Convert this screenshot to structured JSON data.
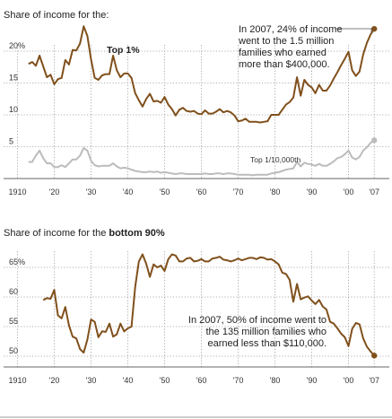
{
  "colors": {
    "primary": "#80501c",
    "secondary": "#bcbcbc"
  },
  "chart_data": [
    {
      "type": "line",
      "title_prefix": "Share of income for the:",
      "x_ticks": [
        "1910",
        "'20",
        "'30",
        "'40",
        "'50",
        "'60",
        "'70",
        "'80",
        "'90",
        "'00",
        "'07"
      ],
      "y_ticks": [
        "20%",
        "15",
        "10",
        "5"
      ],
      "ylim": [
        0,
        25
      ],
      "xlim": [
        1910,
        2008
      ],
      "annotation": [
        "In 2007, 24% of income",
        "went to the 1.5 million",
        "families who earned",
        "more than $400,000."
      ],
      "series": [
        {
          "name": "Top 1%",
          "x": [
            1913,
            1914,
            1915,
            1916,
            1917,
            1918,
            1919,
            1920,
            1921,
            1922,
            1923,
            1924,
            1925,
            1926,
            1927,
            1928,
            1929,
            1930,
            1931,
            1932,
            1933,
            1934,
            1935,
            1936,
            1937,
            1938,
            1939,
            1940,
            1941,
            1942,
            1943,
            1944,
            1945,
            1946,
            1947,
            1948,
            1949,
            1950,
            1951,
            1952,
            1953,
            1954,
            1955,
            1956,
            1957,
            1958,
            1959,
            1960,
            1961,
            1962,
            1963,
            1964,
            1965,
            1966,
            1967,
            1968,
            1969,
            1970,
            1971,
            1972,
            1973,
            1974,
            1975,
            1976,
            1977,
            1978,
            1979,
            1980,
            1981,
            1982,
            1983,
            1984,
            1985,
            1986,
            1987,
            1988,
            1989,
            1990,
            1991,
            1992,
            1993,
            1994,
            1995,
            1996,
            1997,
            1998,
            1999,
            2000,
            2001,
            2002,
            2003,
            2004,
            2005,
            2006,
            2007
          ],
          "values": [
            18,
            18.3,
            17.7,
            19.3,
            17.6,
            15.9,
            16.3,
            14.8,
            15.6,
            15.8,
            18.6,
            17.9,
            20.2,
            20.1,
            21.2,
            23.9,
            22.4,
            18.7,
            15.8,
            15.5,
            16.2,
            16.4,
            16.4,
            19.3,
            17,
            15.9,
            16.5,
            16.5,
            15.8,
            13.4,
            12.3,
            11.3,
            12.5,
            13.3,
            12.1,
            12.2,
            11.9,
            12.8,
            11.6,
            10.9,
            9.9,
            10.8,
            11.1,
            10.6,
            10.5,
            10.6,
            10.2,
            10.1,
            10.7,
            10.2,
            10.2,
            10.5,
            10.9,
            10.4,
            10.6,
            10.4,
            9.9,
            9.0,
            9.1,
            9.4,
            8.9,
            8.9,
            8.9,
            8.8,
            8.9,
            9.0,
            10.0,
            10.0,
            10.0,
            10.8,
            11.6,
            12.0,
            12.7,
            15.9,
            13.0,
            15.5,
            14.7,
            14.3,
            13.4,
            14.7,
            13.8,
            13.8,
            14.6,
            15.7,
            16.7,
            17.8,
            18.8,
            19.9,
            17.0,
            16.1,
            16.8,
            19.5,
            21.3,
            22.6,
            23.5
          ]
        },
        {
          "name": "Top 1/10,000th",
          "x": [
            1913,
            1914,
            1915,
            1916,
            1917,
            1918,
            1919,
            1920,
            1921,
            1922,
            1923,
            1924,
            1925,
            1926,
            1927,
            1928,
            1929,
            1930,
            1931,
            1932,
            1933,
            1934,
            1935,
            1936,
            1937,
            1938,
            1939,
            1940,
            1941,
            1942,
            1943,
            1944,
            1945,
            1946,
            1947,
            1948,
            1949,
            1950,
            1951,
            1952,
            1953,
            1954,
            1955,
            1956,
            1957,
            1958,
            1959,
            1960,
            1961,
            1962,
            1963,
            1964,
            1965,
            1966,
            1967,
            1968,
            1969,
            1970,
            1971,
            1972,
            1973,
            1974,
            1975,
            1976,
            1977,
            1978,
            1979,
            1980,
            1981,
            1982,
            1983,
            1984,
            1985,
            1986,
            1987,
            1988,
            1989,
            1990,
            1991,
            1992,
            1993,
            1994,
            1995,
            1996,
            1997,
            1998,
            1999,
            2000,
            2001,
            2002,
            2003,
            2004,
            2005,
            2006,
            2007
          ],
          "values": [
            2.6,
            2.6,
            3.6,
            4.4,
            3.2,
            2.4,
            2.4,
            1.8,
            1.8,
            2.1,
            1.8,
            2.4,
            3.0,
            3.0,
            3.6,
            4.8,
            4.4,
            2.8,
            2.1,
            1.9,
            2.0,
            2.0,
            2.0,
            2.4,
            1.9,
            1.6,
            1.7,
            1.6,
            1.4,
            1.2,
            1.1,
            1.0,
            1.0,
            1.1,
            1.0,
            1.1,
            0.9,
            1.0,
            0.9,
            0.8,
            0.7,
            0.8,
            0.8,
            0.7,
            0.7,
            0.7,
            0.7,
            0.7,
            0.8,
            0.7,
            0.7,
            0.8,
            0.8,
            0.7,
            0.8,
            0.8,
            0.7,
            0.6,
            0.6,
            0.6,
            0.6,
            0.5,
            0.6,
            0.6,
            0.6,
            0.6,
            0.8,
            0.9,
            1.0,
            1.2,
            1.4,
            1.5,
            1.6,
            2.6,
            1.9,
            2.5,
            2.3,
            2.2,
            2.0,
            2.3,
            2.0,
            2.0,
            2.3,
            2.7,
            3.2,
            3.4,
            3.8,
            4.4,
            3.3,
            3.0,
            3.4,
            4.4,
            4.9,
            5.6,
            6.0
          ]
        }
      ]
    },
    {
      "type": "line",
      "title_prefix": "Share of income for the",
      "title_bold": "bottom 90%",
      "x_ticks": [
        "1910",
        "'20",
        "'30",
        "'40",
        "'50",
        "'60",
        "'70",
        "'80",
        "'90",
        "'00",
        "'07"
      ],
      "y_ticks": [
        "65%",
        "60",
        "55",
        "50"
      ],
      "ylim": [
        49,
        68
      ],
      "xlim": [
        1910,
        2008
      ],
      "annotation": [
        "In 2007, 50% of income went to",
        "the 135 million families who",
        "earned less than $110,000."
      ],
      "series": [
        {
          "name": "Bottom 90%",
          "x": [
            1917,
            1918,
            1919,
            1920,
            1921,
            1922,
            1923,
            1924,
            1925,
            1926,
            1927,
            1928,
            1929,
            1930,
            1931,
            1932,
            1933,
            1934,
            1935,
            1936,
            1937,
            1938,
            1939,
            1940,
            1941,
            1942,
            1943,
            1944,
            1945,
            1946,
            1947,
            1948,
            1949,
            1950,
            1951,
            1952,
            1953,
            1954,
            1955,
            1956,
            1957,
            1958,
            1959,
            1960,
            1961,
            1962,
            1963,
            1964,
            1965,
            1966,
            1967,
            1968,
            1969,
            1970,
            1971,
            1972,
            1973,
            1974,
            1975,
            1976,
            1977,
            1978,
            1979,
            1980,
            1981,
            1982,
            1983,
            1984,
            1985,
            1986,
            1987,
            1988,
            1989,
            1990,
            1991,
            1992,
            1993,
            1994,
            1995,
            1996,
            1997,
            1998,
            1999,
            2000,
            2001,
            2002,
            2003,
            2004,
            2005,
            2006,
            2007
          ],
          "values": [
            59.5,
            59.8,
            59.7,
            61.2,
            56.9,
            56.4,
            58.3,
            55.2,
            53.3,
            53.0,
            51.2,
            50.6,
            52.8,
            56.2,
            55.8,
            53.2,
            54.2,
            54.1,
            55.5,
            53.3,
            53.7,
            55.5,
            54.2,
            54.7,
            55.0,
            61.7,
            66.0,
            67.2,
            65.6,
            63.4,
            65.5,
            65.0,
            65.3,
            64.4,
            66.4,
            67.2,
            67.0,
            66.0,
            66.0,
            66.5,
            66.6,
            66.0,
            66.1,
            66.4,
            66.0,
            66.0,
            66.5,
            66.6,
            66.8,
            66.3,
            66.2,
            66.0,
            66.2,
            66.5,
            66.2,
            66.4,
            66.6,
            66.6,
            66.4,
            66.7,
            66.6,
            66.3,
            66.4,
            66.0,
            65.5,
            64.1,
            63.9,
            62.9,
            59.2,
            62.2,
            59.6,
            59.9,
            60.1,
            59.4,
            58.8,
            59.5,
            58.4,
            57.9,
            55.8,
            55.5,
            54.7,
            53.8,
            53.2,
            51.7,
            54.6,
            55.6,
            55.4,
            53.0,
            51.6,
            50.8,
            50.1
          ]
        }
      ]
    }
  ]
}
